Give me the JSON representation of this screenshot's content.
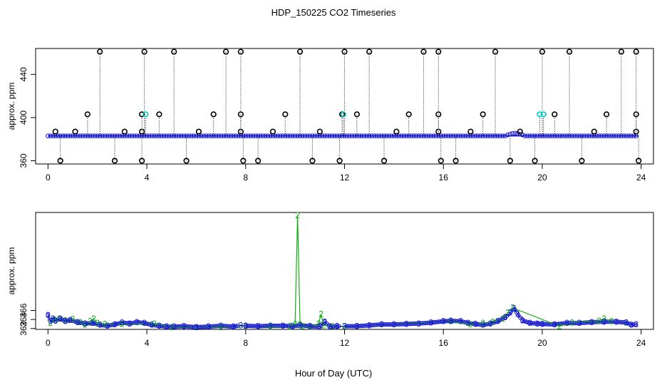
{
  "title": "HDP_150225  CO2 Timeseries",
  "xlabel": "Hour of Day (UTC)",
  "colors": {
    "blue": "#1010d0",
    "green": "#10b010",
    "black": "#000000",
    "cyan": "#00c8c8",
    "axis": "#000000"
  },
  "chart_data": [
    {
      "type": "scatter",
      "name": "top-panel",
      "ylabel": "approx. ppm",
      "xlim": [
        -0.5,
        24.5
      ],
      "ylim": [
        357,
        464
      ],
      "xticks": [
        0,
        4,
        8,
        12,
        16,
        20,
        24
      ],
      "yticks": [
        360,
        400,
        440
      ],
      "baseline": 383,
      "baseline_series": "blue line with circle markers",
      "spikes_high": [
        2.1,
        3.9,
        5.1,
        7.2,
        7.8,
        10.2,
        12.0,
        13.0,
        15.2,
        15.8,
        18.1,
        20.0,
        21.1,
        23.2,
        23.8
      ],
      "spikes_mid": [
        1.6,
        3.8,
        4.5,
        6.7,
        7.8,
        9.6,
        11.9,
        12.5,
        14.6,
        15.8,
        17.6,
        20.5,
        22.6,
        23.8
      ],
      "spikes_cyan": [
        3.95,
        11.95,
        19.9,
        20.05
      ],
      "spikes_low_level": 387,
      "spikes_low": [
        0.3,
        1.1,
        3.1,
        3.8,
        6.1,
        7.8,
        9.1,
        11.0,
        14.1,
        15.8,
        17.1,
        19.1,
        22.1,
        23.8
      ],
      "dips": [
        0.5,
        2.7,
        3.8,
        5.6,
        7.9,
        8.5,
        10.7,
        11.8,
        13.6,
        15.9,
        16.5,
        18.7,
        19.7,
        21.6,
        23.9
      ],
      "high_level": 461,
      "mid_level": 403,
      "dip_level": 360
    },
    {
      "type": "line",
      "name": "bottom-panel",
      "ylabel": "approx. ppm",
      "xlim": [
        -0.5,
        24.5
      ],
      "ylim": [
        361.8,
        387.8
      ],
      "xticks": [
        0,
        4,
        8,
        12,
        16,
        20,
        24
      ],
      "yticks": [
        362,
        364,
        366
      ],
      "series": [
        {
          "name": "3",
          "color": "blue",
          "x": [
            0.0,
            0.1,
            0.2,
            0.3,
            0.5,
            0.7,
            0.9,
            1.2,
            1.5,
            1.8,
            2.1,
            2.4,
            2.7,
            3.0,
            3.3,
            3.6,
            3.9,
            4.2,
            4.5,
            4.8,
            5.1,
            5.5,
            6.0,
            6.5,
            7.0,
            7.5,
            7.8,
            8.0,
            8.5,
            9.0,
            9.5,
            9.9,
            10.2,
            10.6,
            11.0,
            11.2,
            11.4,
            11.7,
            12.0,
            12.5,
            13.0,
            13.5,
            14.0,
            14.5,
            15.0,
            15.5,
            16.0,
            16.3,
            16.7,
            17.0,
            17.3,
            17.6,
            17.9,
            18.2,
            18.5,
            18.7,
            18.85,
            19.0,
            19.2,
            19.5,
            19.8,
            20.0,
            20.5,
            21.0,
            21.5,
            22.0,
            22.5,
            23.0,
            23.4,
            23.6,
            23.8
          ],
          "values": [
            365.0,
            363.6,
            364.2,
            363.7,
            364.2,
            363.6,
            363.9,
            363.4,
            363.1,
            363.2,
            362.8,
            362.6,
            362.9,
            363.3,
            363.1,
            363.4,
            363.2,
            362.8,
            362.6,
            362.4,
            362.4,
            362.5,
            362.3,
            362.4,
            362.6,
            362.4,
            362.7,
            362.6,
            362.5,
            362.6,
            362.6,
            362.5,
            362.7,
            362.5,
            362.4,
            363.5,
            362.4,
            362.5,
            362.5,
            362.5,
            362.7,
            362.9,
            362.9,
            363.0,
            363.1,
            363.3,
            363.6,
            363.7,
            363.6,
            363.2,
            363.0,
            362.8,
            363.1,
            363.6,
            364.5,
            365.5,
            366.5,
            365.2,
            363.8,
            363.2,
            363.1,
            363.0,
            362.9,
            363.2,
            363.2,
            363.4,
            363.5,
            363.5,
            363.3,
            362.8,
            362.9
          ]
        },
        {
          "name": "2",
          "color": "green",
          "x": [
            0.1,
            0.25,
            0.45,
            0.7,
            1.0,
            1.3,
            1.5,
            1.7,
            1.85,
            2.0,
            2.3,
            3.0,
            4.3,
            5.0,
            6.0,
            7.0,
            8.0,
            9.0,
            9.8,
            10.0,
            10.1,
            10.2,
            10.3,
            10.6,
            10.95,
            11.05,
            11.15,
            11.5,
            12.0,
            16.3,
            17.1,
            17.6,
            18.0,
            18.4,
            18.6,
            18.8,
            20.7,
            21.2,
            22.3,
            22.5,
            22.8,
            23.4
          ],
          "values": [
            363.2,
            364.0,
            364.2,
            363.8,
            364.1,
            363.4,
            362.8,
            363.6,
            364.2,
            363.2,
            363.0,
            363.0,
            363.1,
            362.3,
            362.3,
            362.3,
            362.6,
            362.4,
            362.6,
            363.0,
            387.2,
            362.9,
            362.5,
            362.4,
            363.1,
            365.2,
            362.7,
            362.5,
            362.4,
            363.6,
            362.9,
            363.2,
            363.5,
            364.2,
            365.5,
            366.6,
            362.5,
            363.3,
            363.7,
            364.2,
            363.6,
            363.3
          ]
        }
      ]
    }
  ]
}
